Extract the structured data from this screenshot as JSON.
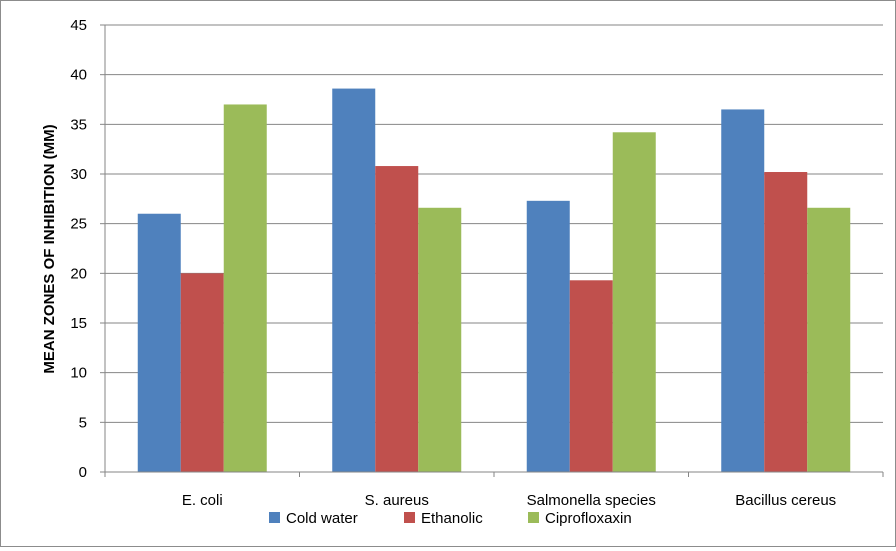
{
  "chart_data": {
    "type": "bar",
    "title": "",
    "xlabel": "",
    "ylabel": "MEAN ZONES OF INHIBITION  (MM)",
    "ylim": [
      0,
      45
    ],
    "yticks": [
      0,
      5,
      10,
      15,
      20,
      25,
      30,
      35,
      40,
      45
    ],
    "categories": [
      "E. coli",
      "S. aureus",
      "Salmonella species",
      "Bacillus cereus"
    ],
    "series": [
      {
        "name": "Cold water",
        "color": "#4f81bd",
        "values": [
          26.0,
          38.6,
          27.3,
          36.5
        ]
      },
      {
        "name": "Ethanolic",
        "color": "#c0504d",
        "values": [
          20.0,
          30.8,
          19.3,
          30.2
        ]
      },
      {
        "name": "Ciprofloxaxin",
        "color": "#9bbb59",
        "values": [
          37.0,
          26.6,
          34.2,
          26.6
        ]
      }
    ],
    "grid": true,
    "legend_position": "bottom"
  }
}
